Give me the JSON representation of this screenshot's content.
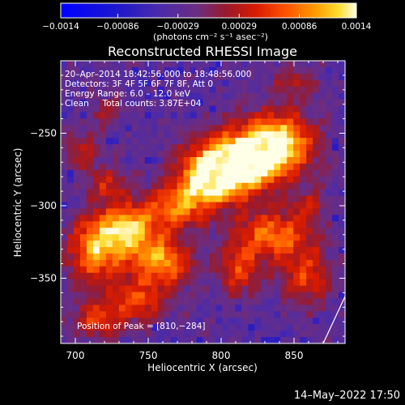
{
  "chart_data": {
    "type": "heatmap",
    "title": "Reconstructed RHESSI Image",
    "xlabel": "Heliocentric X (arcsec)",
    "ylabel": "Heliocentric Y (arcsec)",
    "xlim": [
      690,
      885
    ],
    "ylim": [
      -395,
      -200
    ],
    "x_ticks": [
      700,
      750,
      800,
      850
    ],
    "y_ticks": [
      -250,
      -300,
      -350
    ],
    "x_tick_labels": [
      "700",
      "750",
      "800",
      "850"
    ],
    "y_tick_labels": [
      "−250",
      "−300",
      "−350"
    ],
    "colorbar": {
      "min": -0.0014,
      "max": 0.0014,
      "tick_values": [
        -0.0014,
        -0.00086,
        -0.00029,
        0.00029,
        0.00086,
        0.0014
      ],
      "tick_labels": [
        "−0.0014",
        "−0.00086",
        "−0.00029",
        "0.00029",
        "0.00086",
        "0.0014"
      ],
      "unit_label": "(photons cm⁻² s⁻¹ asec⁻²)"
    },
    "annotations": {
      "time_range": "20–Apr–2014 18:42:56.000 to 18:48:56.000",
      "detectors": "Detectors: 3F 4F 5F 6F 7F 8F, Att 0",
      "energy": "Energy Range: 6.0 – 12.0 keV",
      "method": "Clean     Total counts: 3.87E+04",
      "peak": "Position of Peak = [810,−284]"
    },
    "peak_position": [
      810,
      -284
    ],
    "sources": [
      {
        "x": 815,
        "y": -268,
        "sx": 22,
        "sy": 14,
        "amp": 1.0
      },
      {
        "x": 795,
        "y": -282,
        "sx": 16,
        "sy": 12,
        "amp": 0.9
      },
      {
        "x": 840,
        "y": -255,
        "sx": 16,
        "sy": 14,
        "amp": 0.75
      },
      {
        "x": 772,
        "y": -300,
        "sx": 14,
        "sy": 10,
        "amp": 0.55
      },
      {
        "x": 735,
        "y": -318,
        "sx": 18,
        "sy": 14,
        "amp": 0.85
      },
      {
        "x": 760,
        "y": -340,
        "sx": 14,
        "sy": 10,
        "amp": 0.65
      },
      {
        "x": 712,
        "y": -335,
        "sx": 12,
        "sy": 14,
        "amp": 0.55
      },
      {
        "x": 742,
        "y": -365,
        "sx": 14,
        "sy": 10,
        "amp": 0.5
      },
      {
        "x": 715,
        "y": -378,
        "sx": 12,
        "sy": 9,
        "amp": 0.45
      },
      {
        "x": 835,
        "y": -320,
        "sx": 18,
        "sy": 12,
        "amp": 0.6
      },
      {
        "x": 812,
        "y": -345,
        "sx": 10,
        "sy": 12,
        "amp": 0.45
      },
      {
        "x": 858,
        "y": -348,
        "sx": 12,
        "sy": 14,
        "amp": 0.45
      },
      {
        "x": 722,
        "y": -285,
        "sx": 8,
        "sy": 8,
        "amp": 0.35
      },
      {
        "x": 705,
        "y": -262,
        "sx": 8,
        "sy": 10,
        "amp": 0.3
      },
      {
        "x": 720,
        "y": -235,
        "sx": 8,
        "sy": 8,
        "amp": 0.22
      },
      {
        "x": 850,
        "y": -215,
        "sx": 10,
        "sy": 8,
        "amp": 0.3
      },
      {
        "x": 860,
        "y": -300,
        "sx": 8,
        "sy": 8,
        "amp": 0.28
      }
    ]
  },
  "footer": {
    "date": "14–May–2022 17:50"
  }
}
